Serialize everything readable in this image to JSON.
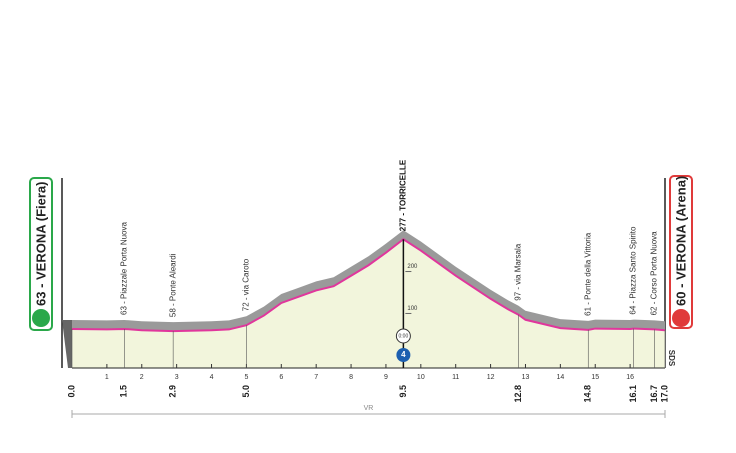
{
  "chart_data": {
    "type": "area",
    "start_label": "63 - VERONA (Fiera)",
    "finish_label": "60 - VERONA (Arena)",
    "x": [
      0,
      1,
      1.5,
      2,
      2.9,
      4,
      4.5,
      5,
      5.5,
      6,
      6.5,
      7,
      7.5,
      8,
      8.5,
      9,
      9.5,
      10,
      11,
      12,
      12.5,
      12.8,
      13,
      14,
      14.8,
      15,
      16,
      16.1,
      16.7,
      17
    ],
    "values": [
      63,
      62,
      63,
      60,
      58,
      60,
      62,
      72,
      95,
      125,
      140,
      155,
      165,
      190,
      215,
      245,
      277,
      250,
      190,
      135,
      110,
      97,
      85,
      65,
      61,
      64,
      63,
      64,
      62,
      60
    ],
    "color": "#e0369c",
    "fill": "#f2f5dc",
    "road_color": "#9a9a9a",
    "xlim": [
      0,
      17
    ],
    "ylim": [
      -30,
      330
    ],
    "xticks": [
      1,
      2,
      3,
      4,
      5,
      6,
      7,
      8,
      9,
      10,
      11,
      12,
      13,
      14,
      15,
      16
    ],
    "yticks": [
      100,
      200
    ],
    "points": [
      {
        "km": {
          "value": 0,
          "label": "0.0"
        }
      },
      {
        "km": {
          "value": 1.5,
          "label": "1.5"
        },
        "name": "63 - Piazzale Porta Nuova"
      },
      {
        "km": {
          "value": 2.9,
          "label": "2.9"
        },
        "name": "58 - Ponte Aleardi"
      },
      {
        "km": {
          "value": 5,
          "label": "5.0"
        },
        "name": "72 - via Caroto"
      },
      {
        "km": {
          "value": 9.5,
          "label": "9.5"
        },
        "name": "277 - TORRICELLE"
      },
      {
        "km": {
          "value": 12.8,
          "label": "12.8"
        },
        "name": "97 - via Marsala"
      },
      {
        "km": {
          "value": 14.8,
          "label": "14.8"
        },
        "name": "61 - Ponte della Vittoria"
      },
      {
        "km": {
          "value": 16.1,
          "label": "16.1"
        },
        "name": "64 - Piazza Santo Spirito"
      },
      {
        "km": {
          "value": 16.7,
          "label": "16.7"
        },
        "name": "62 - Corso Porta Nuova"
      },
      {
        "km": {
          "value": 17,
          "label": "17.0"
        }
      }
    ],
    "timing": "0:00",
    "climb_category": "4",
    "finish_code": "SDS",
    "province": "VR"
  }
}
